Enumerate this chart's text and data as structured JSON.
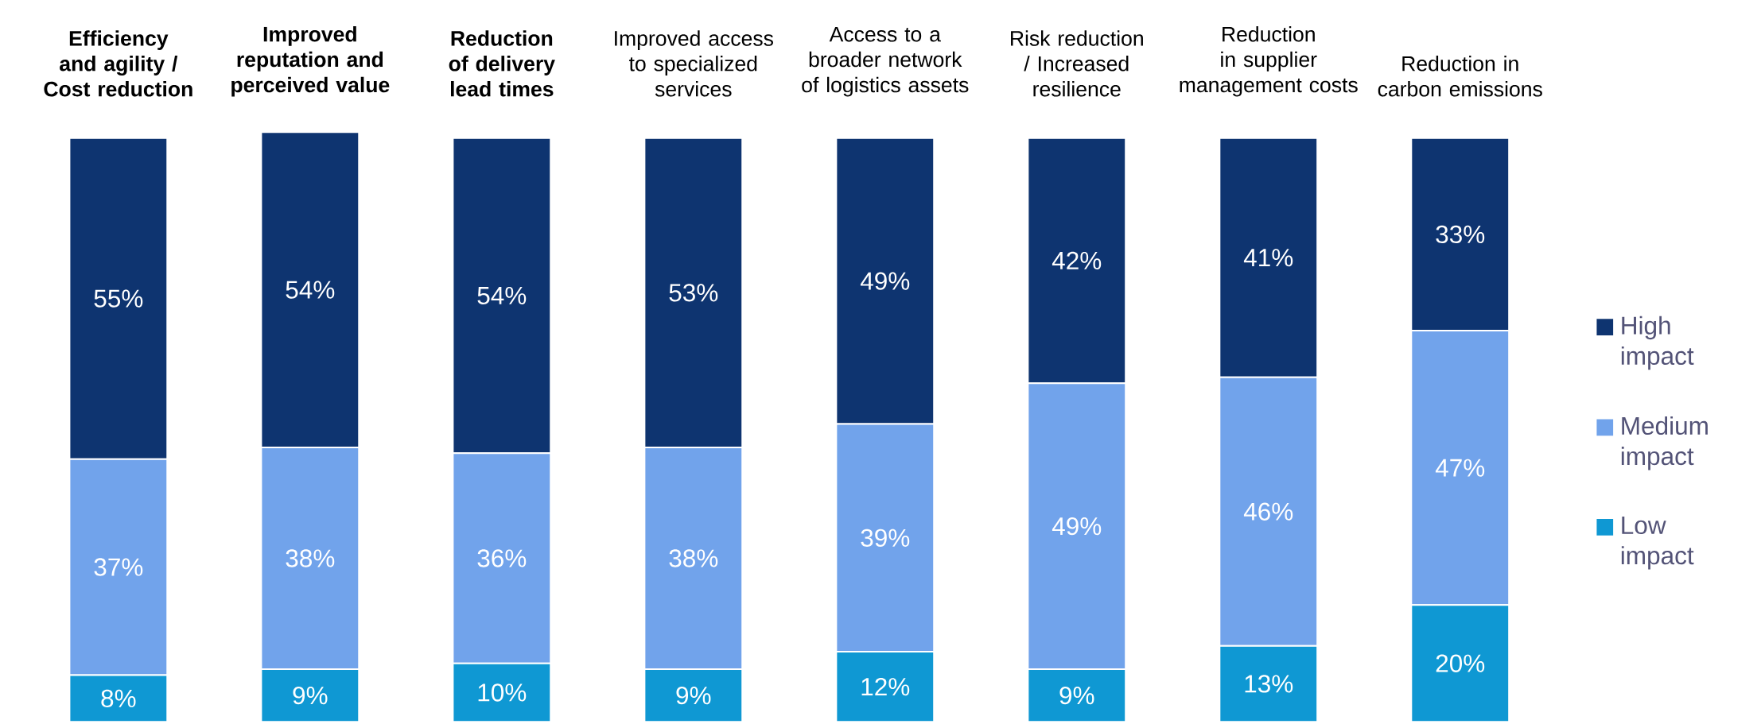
{
  "chart_data": {
    "type": "bar",
    "stacked": true,
    "legend": "right",
    "categories": [
      "Efficiency and agility / Cost reduction",
      "Improved reputation and perceived value",
      "Reduction of delivery lead times",
      "Improved access to specialized services",
      "Access to a broader network of logistics assets",
      "Risk reduction / Increased resilience",
      "Reduction in supplier management costs",
      "Reduction in carbon emissions"
    ],
    "series": [
      {
        "name": "Low impact",
        "color": "#0f98d3",
        "values": [
          8,
          9,
          10,
          9,
          12,
          9,
          13,
          20
        ],
        "value_labels": [
          "8%",
          "9%",
          "10%",
          "9%",
          "12%",
          "9%",
          "13%",
          "20%"
        ]
      },
      {
        "name": "Medium impact",
        "color": "#71a3eb",
        "values": [
          37,
          38,
          36,
          38,
          39,
          49,
          46,
          47
        ],
        "value_labels": [
          "37%",
          "38%",
          "36%",
          "38%",
          "39%",
          "49%",
          "46%",
          "47%"
        ]
      },
      {
        "name": "High impact",
        "color": "#0e3470",
        "values": [
          55,
          54,
          54,
          53,
          49,
          42,
          41,
          33
        ],
        "value_labels": [
          "55%",
          "54%",
          "54%",
          "53%",
          "49%",
          "42%",
          "41%",
          "33%"
        ]
      }
    ]
  }
}
